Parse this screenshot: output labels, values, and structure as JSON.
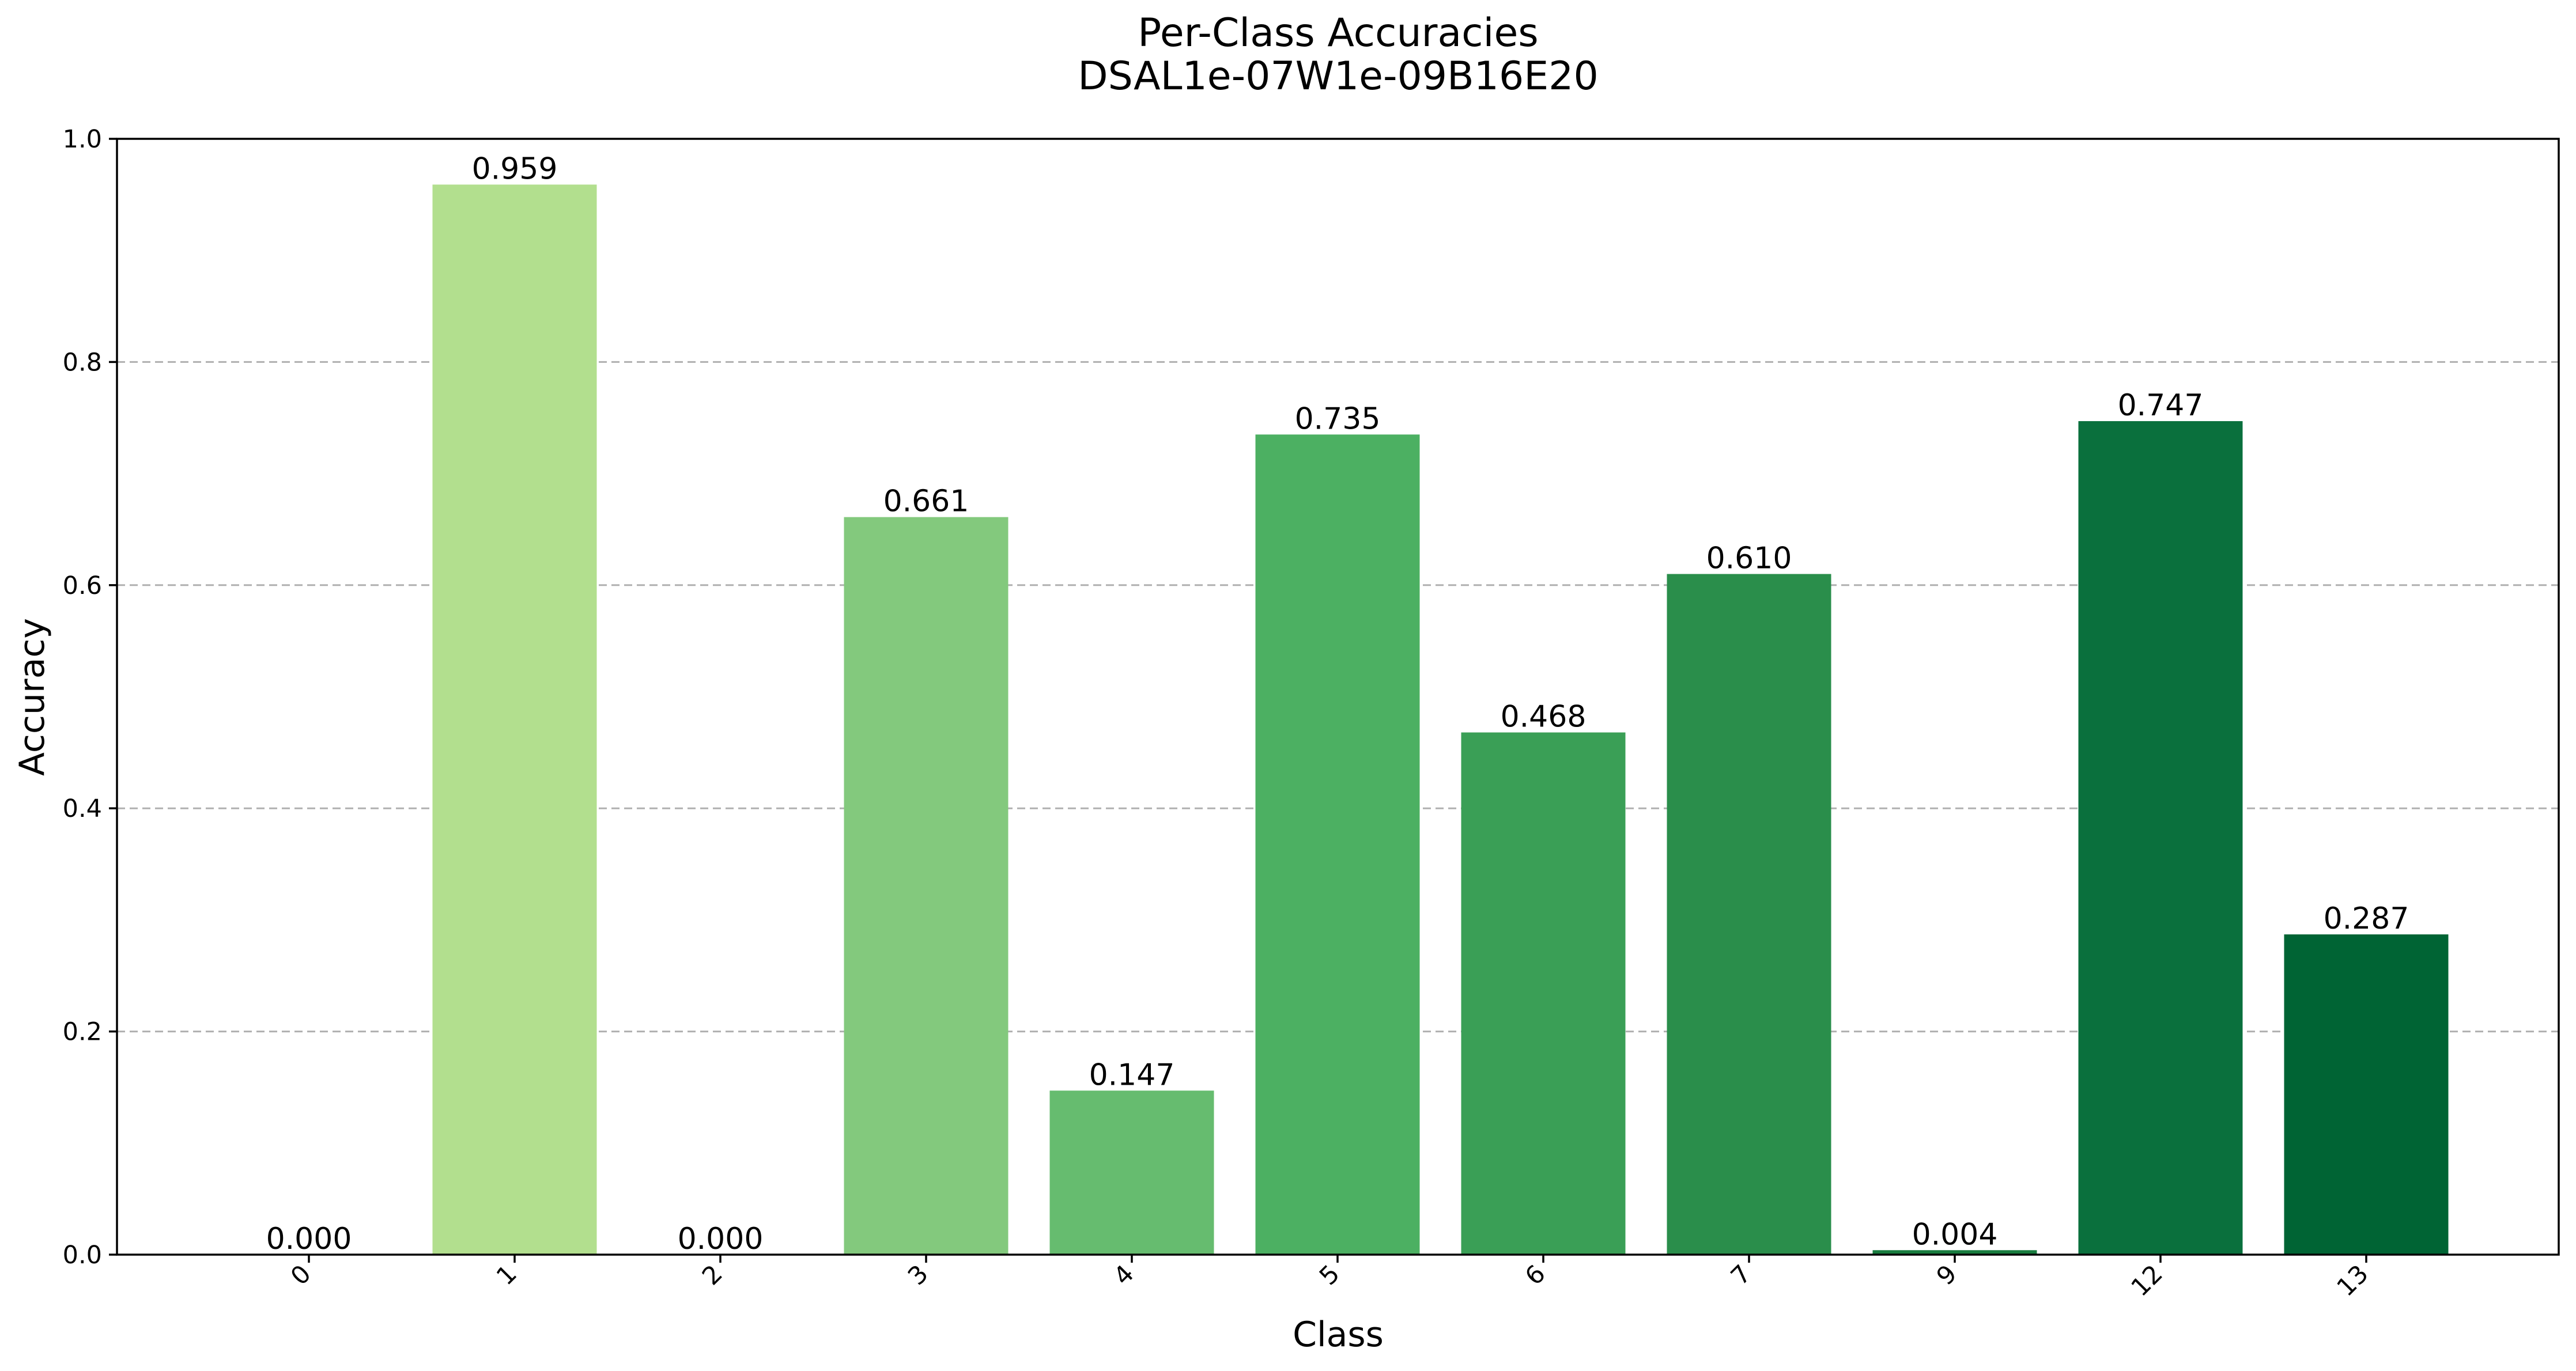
{
  "chart_data": {
    "type": "bar",
    "title": "Per-Class Accuracies",
    "subtitle": "DSAL1e-07W1e-09B16E20",
    "xlabel": "Class",
    "ylabel": "Accuracy",
    "ylim": [
      0,
      1.0
    ],
    "yticks": [
      "0.0",
      "0.2",
      "0.4",
      "0.6",
      "0.8",
      "1.0"
    ],
    "ytick_values": [
      0,
      0.2,
      0.4,
      0.6,
      0.8,
      1.0
    ],
    "grid": "horizontal dashed",
    "categories": [
      "0",
      "1",
      "2",
      "3",
      "4",
      "5",
      "6",
      "7",
      "9",
      "12",
      "13"
    ],
    "values": [
      0.0,
      0.959,
      0.0,
      0.661,
      0.147,
      0.735,
      0.468,
      0.61,
      0.004,
      0.747,
      0.287
    ],
    "value_labels": [
      "0.000",
      "0.959",
      "0.000",
      "0.661",
      "0.147",
      "0.735",
      "0.468",
      "0.610",
      "0.004",
      "0.747",
      "0.287"
    ],
    "colors": [
      "#c7e9a8",
      "#b2df8e",
      "#9ad584",
      "#83c97d",
      "#66bc6f",
      "#4cb062",
      "#3a9f56",
      "#2a8e4b",
      "#187c3f",
      "#0a703d",
      "#006434"
    ]
  }
}
